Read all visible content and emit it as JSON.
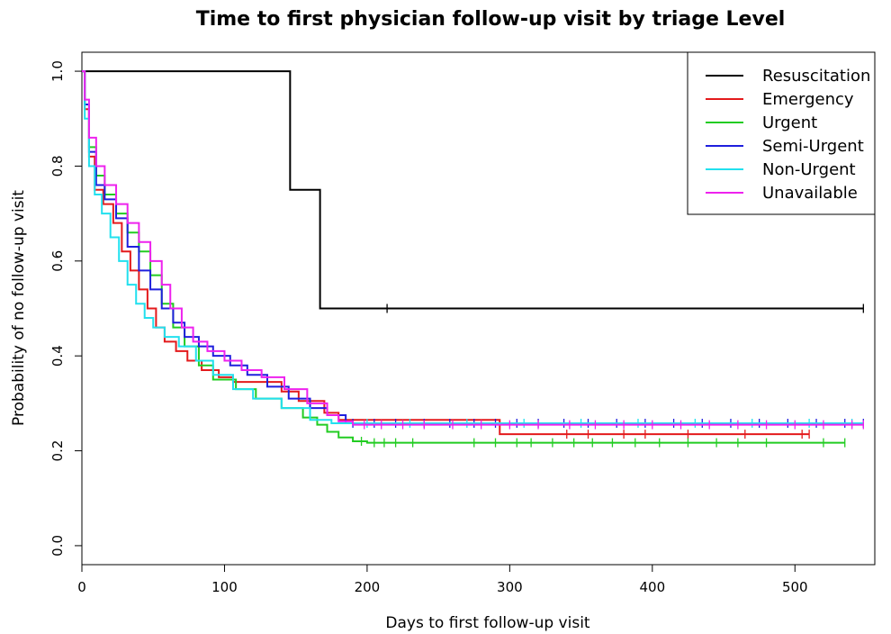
{
  "chart_data": {
    "type": "line",
    "title": "Time to first physician follow-up visit by triage Level",
    "xlabel": "Days to first follow-up visit",
    "ylabel": "Probability of no follow-up visit",
    "xlim": [
      0,
      556
    ],
    "ylim": [
      -0.04,
      1.04
    ],
    "xticks": [
      0,
      100,
      200,
      300,
      400,
      500
    ],
    "yticks": [
      0.0,
      0.2,
      0.4,
      0.6,
      0.8,
      1.0
    ],
    "xtick_labels": [
      "0",
      "100",
      "200",
      "300",
      "400",
      "500"
    ],
    "ytick_labels": [
      "0.0",
      "0.2",
      "0.4",
      "0.6",
      "0.8",
      "1.0"
    ],
    "grid": false,
    "legend_position": "top-right",
    "series": [
      {
        "name": "Resuscitation",
        "color": "#000000",
        "steps": [
          [
            0,
            1.0
          ],
          [
            146,
            0.75
          ],
          [
            167,
            0.5
          ],
          [
            548,
            0.5
          ]
        ],
        "censored": [
          214,
          548
        ]
      },
      {
        "name": "Emergency",
        "color": "#e31a1c",
        "steps": [
          [
            0,
            1.0
          ],
          [
            2,
            0.92
          ],
          [
            5,
            0.82
          ],
          [
            9,
            0.75
          ],
          [
            15,
            0.72
          ],
          [
            22,
            0.68
          ],
          [
            28,
            0.62
          ],
          [
            34,
            0.58
          ],
          [
            40,
            0.54
          ],
          [
            46,
            0.5
          ],
          [
            52,
            0.46
          ],
          [
            58,
            0.43
          ],
          [
            66,
            0.41
          ],
          [
            74,
            0.39
          ],
          [
            84,
            0.37
          ],
          [
            96,
            0.355
          ],
          [
            106,
            0.345
          ],
          [
            140,
            0.325
          ],
          [
            152,
            0.305
          ],
          [
            170,
            0.28
          ],
          [
            180,
            0.265
          ],
          [
            293,
            0.235
          ],
          [
            510,
            0.235
          ]
        ],
        "censored": [
          340,
          355,
          380,
          395,
          425,
          465,
          505,
          510
        ]
      },
      {
        "name": "Urgent",
        "color": "#22cc22",
        "steps": [
          [
            0,
            1.0
          ],
          [
            2,
            0.93
          ],
          [
            5,
            0.84
          ],
          [
            10,
            0.78
          ],
          [
            16,
            0.74
          ],
          [
            24,
            0.7
          ],
          [
            32,
            0.66
          ],
          [
            40,
            0.62
          ],
          [
            48,
            0.57
          ],
          [
            56,
            0.51
          ],
          [
            64,
            0.46
          ],
          [
            72,
            0.42
          ],
          [
            82,
            0.38
          ],
          [
            92,
            0.35
          ],
          [
            108,
            0.33
          ],
          [
            122,
            0.31
          ],
          [
            140,
            0.29
          ],
          [
            155,
            0.27
          ],
          [
            165,
            0.255
          ],
          [
            172,
            0.24
          ],
          [
            180,
            0.228
          ],
          [
            190,
            0.22
          ],
          [
            200,
            0.217
          ],
          [
            535,
            0.217
          ]
        ],
        "censored": [
          196,
          205,
          212,
          220,
          232,
          275,
          290,
          305,
          315,
          330,
          345,
          358,
          372,
          388,
          405,
          425,
          445,
          460,
          480,
          520,
          535
        ]
      },
      {
        "name": "Semi-Urgent",
        "color": "#1f1fdd",
        "steps": [
          [
            0,
            1.0
          ],
          [
            2,
            0.93
          ],
          [
            5,
            0.83
          ],
          [
            10,
            0.76
          ],
          [
            16,
            0.73
          ],
          [
            24,
            0.69
          ],
          [
            32,
            0.63
          ],
          [
            40,
            0.58
          ],
          [
            48,
            0.54
          ],
          [
            56,
            0.5
          ],
          [
            64,
            0.47
          ],
          [
            72,
            0.44
          ],
          [
            82,
            0.42
          ],
          [
            92,
            0.4
          ],
          [
            104,
            0.38
          ],
          [
            116,
            0.36
          ],
          [
            130,
            0.335
          ],
          [
            145,
            0.31
          ],
          [
            160,
            0.29
          ],
          [
            172,
            0.275
          ],
          [
            185,
            0.258
          ],
          [
            548,
            0.258
          ]
        ],
        "censored": [
          190,
          205,
          220,
          240,
          258,
          275,
          290,
          305,
          320,
          338,
          355,
          375,
          395,
          415,
          435,
          455,
          475,
          495,
          515,
          535,
          548
        ]
      },
      {
        "name": "Non-Urgent",
        "color": "#22e0ee",
        "steps": [
          [
            0,
            1.0
          ],
          [
            2,
            0.9
          ],
          [
            5,
            0.8
          ],
          [
            9,
            0.74
          ],
          [
            14,
            0.7
          ],
          [
            20,
            0.65
          ],
          [
            26,
            0.6
          ],
          [
            32,
            0.55
          ],
          [
            38,
            0.51
          ],
          [
            44,
            0.48
          ],
          [
            50,
            0.46
          ],
          [
            58,
            0.44
          ],
          [
            68,
            0.42
          ],
          [
            80,
            0.39
          ],
          [
            92,
            0.36
          ],
          [
            106,
            0.33
          ],
          [
            120,
            0.31
          ],
          [
            140,
            0.29
          ],
          [
            160,
            0.265
          ],
          [
            175,
            0.258
          ],
          [
            548,
            0.258
          ]
        ],
        "censored": [
          200,
          230,
          270,
          310,
          350,
          390,
          430,
          470,
          510,
          540
        ]
      },
      {
        "name": "Unavailable",
        "color": "#ee22ee",
        "steps": [
          [
            0,
            1.0
          ],
          [
            2,
            0.94
          ],
          [
            5,
            0.86
          ],
          [
            10,
            0.8
          ],
          [
            16,
            0.76
          ],
          [
            24,
            0.72
          ],
          [
            32,
            0.68
          ],
          [
            40,
            0.64
          ],
          [
            48,
            0.6
          ],
          [
            56,
            0.55
          ],
          [
            62,
            0.5
          ],
          [
            70,
            0.46
          ],
          [
            78,
            0.43
          ],
          [
            88,
            0.41
          ],
          [
            100,
            0.39
          ],
          [
            112,
            0.37
          ],
          [
            126,
            0.355
          ],
          [
            142,
            0.33
          ],
          [
            158,
            0.3
          ],
          [
            172,
            0.275
          ],
          [
            180,
            0.262
          ],
          [
            190,
            0.255
          ],
          [
            548,
            0.255
          ]
        ],
        "censored": [
          198,
          210,
          225,
          240,
          260,
          280,
          300,
          320,
          342,
          360,
          380,
          400,
          420,
          440,
          460,
          480,
          500,
          520,
          540,
          548
        ]
      }
    ]
  }
}
